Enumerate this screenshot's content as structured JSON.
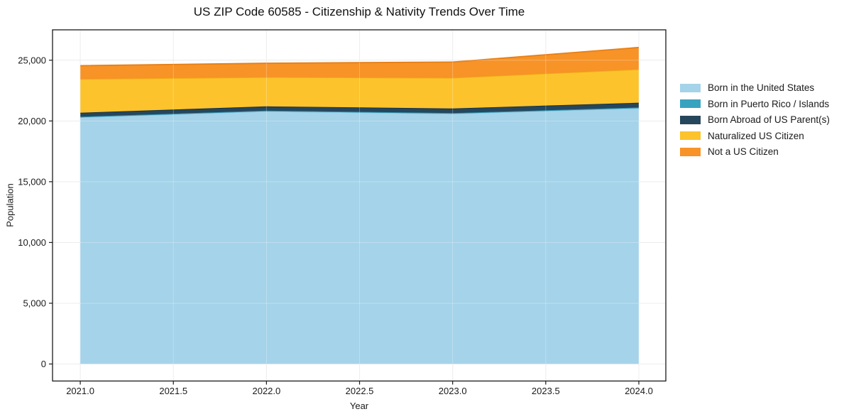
{
  "chart_data": {
    "type": "area",
    "stacked": true,
    "title": "US ZIP Code 60585 - Citizenship & Nativity Trends Over Time",
    "xlabel": "Year",
    "ylabel": "Population",
    "x": [
      2021,
      2022,
      2023,
      2024
    ],
    "series": [
      {
        "name": "Born in the United States",
        "color": "#a5d3e9",
        "edge_color": "#8fc6e0",
        "values": [
          20300,
          20800,
          20600,
          21050
        ]
      },
      {
        "name": "Born in Puerto Rico / Islands",
        "color": "#38a3bf",
        "edge_color": "#2b93ae",
        "values": [
          50,
          50,
          50,
          60
        ]
      },
      {
        "name": "Born Abroad of US Parent(s)",
        "color": "#26465c",
        "edge_color": "#182f40",
        "values": [
          330,
          350,
          380,
          390
        ]
      },
      {
        "name": "Naturalized US Citizen",
        "color": "#fcc32d",
        "edge_color": "#f0ad13",
        "values": [
          2770,
          2400,
          2520,
          2750
        ]
      },
      {
        "name": "Not a US Citizen",
        "color": "#f79327",
        "edge_color": "#e67f16",
        "values": [
          1100,
          1150,
          1300,
          1800
        ]
      }
    ],
    "totals": [
      24550,
      24750,
      24850,
      26050
    ],
    "x_tick_labels": [
      "2021.0",
      "2021.5",
      "2022.0",
      "2022.5",
      "2023.0",
      "2023.5",
      "2024.0"
    ],
    "x_tick_values": [
      2021,
      2021.5,
      2022,
      2022.5,
      2023,
      2023.5,
      2024
    ],
    "y_tick_labels": [
      "0",
      "5,000",
      "10,000",
      "15,000",
      "20,000",
      "25,000"
    ],
    "y_tick_values": [
      0,
      5000,
      10000,
      15000,
      20000,
      25000
    ],
    "xlim": [
      2020.851,
      2024.145
    ],
    "ylim": [
      -1400,
      27500
    ],
    "grid": true,
    "legend_position": "right-outside"
  },
  "colors": {
    "background": "#ffffff",
    "grid": "#e7e7e7",
    "grid_over_area": "#ffffff",
    "spine": "#1a1a1a",
    "tick_text": "#1a1a1a"
  }
}
